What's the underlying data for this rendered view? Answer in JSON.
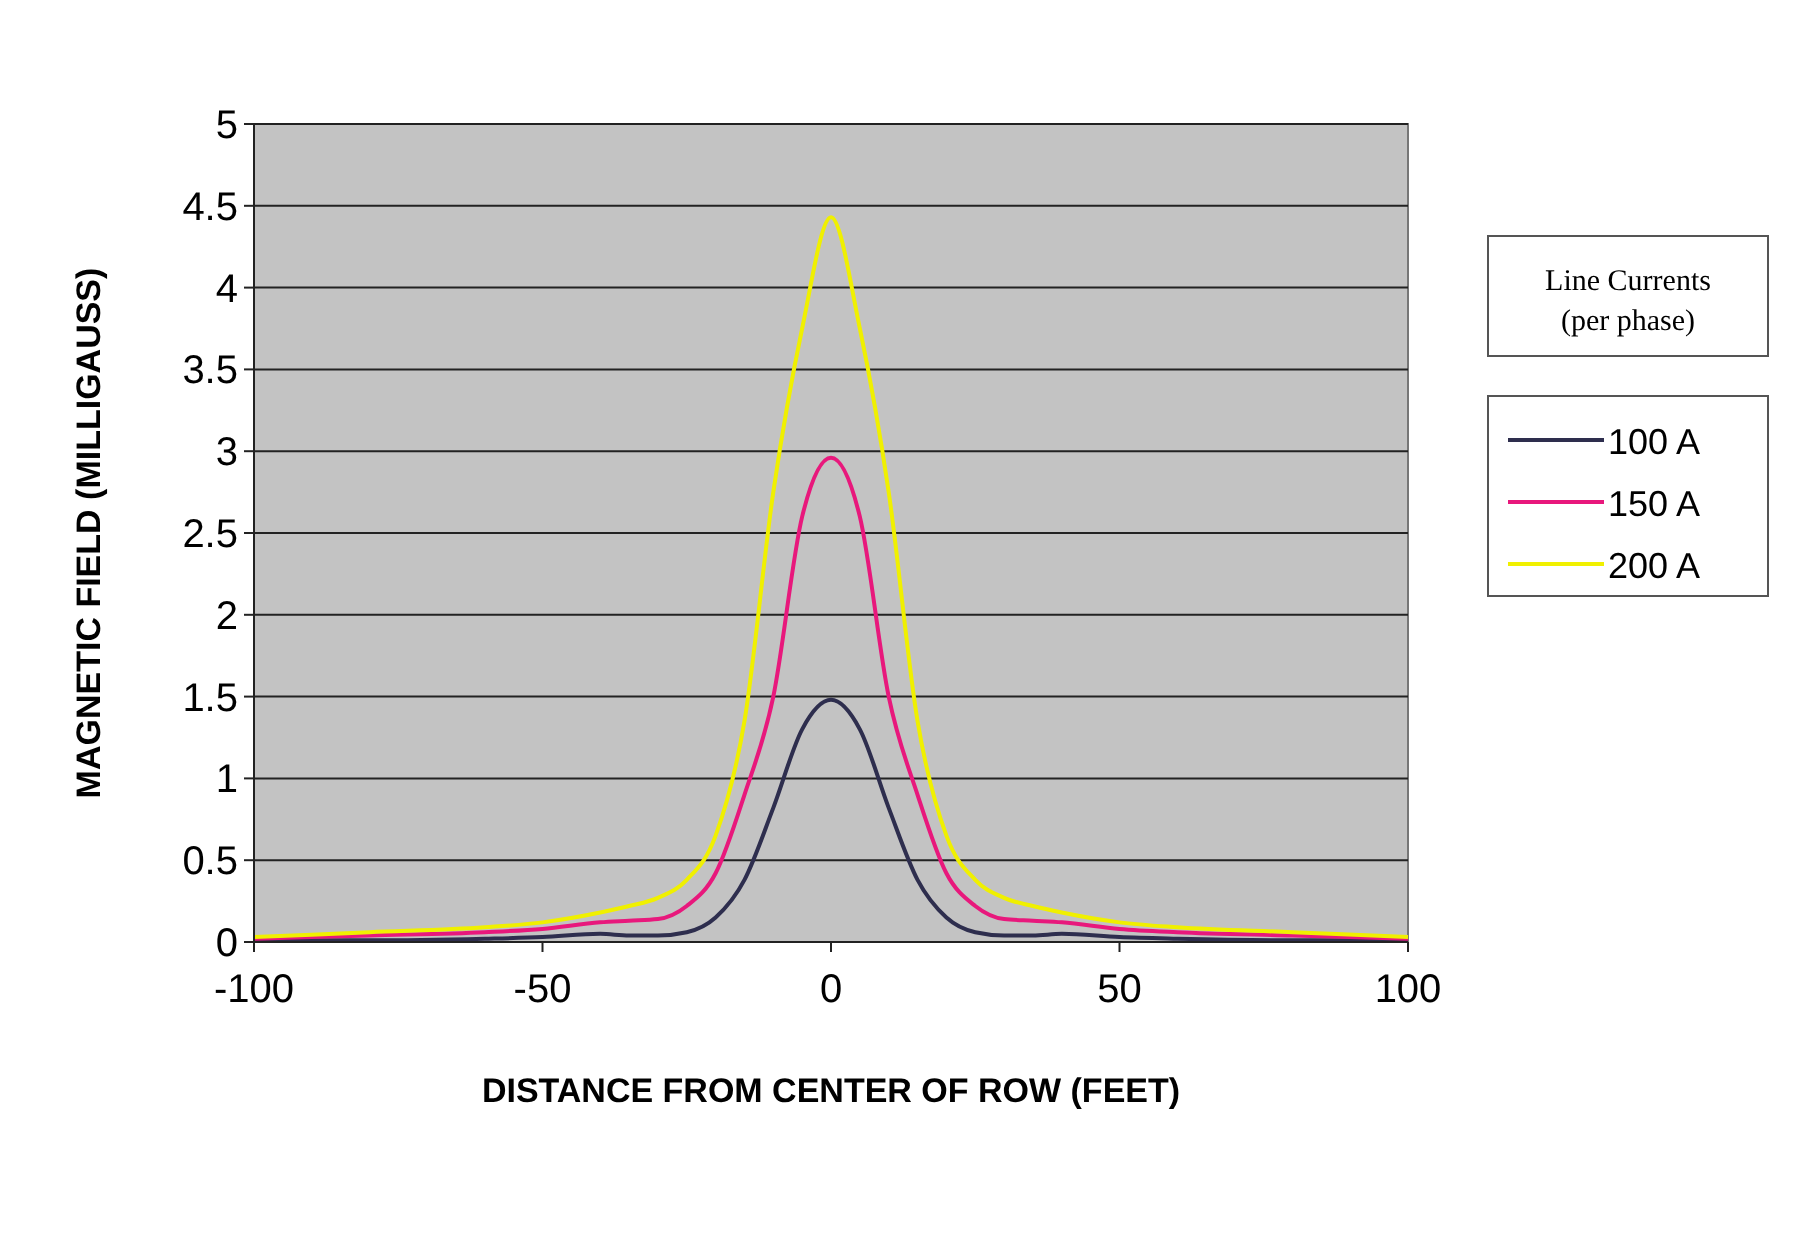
{
  "chart_data": {
    "type": "line",
    "xlabel": "DISTANCE FROM CENTER OF ROW (FEET)",
    "ylabel": "MAGNETIC FIELD (MILLIGAUSS)",
    "legend_title": "Line Currents (per phase)",
    "legend": "right",
    "grid": "y",
    "line_style": "solid",
    "x": [
      -100,
      -80,
      -60,
      -50,
      -40,
      -35,
      -30,
      -25,
      -20,
      -15,
      -10,
      -5,
      0,
      5,
      10,
      15,
      20,
      25,
      30,
      35,
      40,
      50,
      60,
      80,
      100
    ],
    "xlim": [
      -100,
      100
    ],
    "xticks": [
      -100,
      -50,
      0,
      50,
      100
    ],
    "ylim": [
      0,
      5
    ],
    "yticks": [
      0,
      0.5,
      1,
      1.5,
      2,
      2.5,
      3,
      3.5,
      4,
      4.5,
      5
    ],
    "series": [
      {
        "name": "100 A",
        "color": "#2e2e4e",
        "values": [
          0.01,
          0.01,
          0.02,
          0.03,
          0.05,
          0.04,
          0.04,
          0.06,
          0.15,
          0.38,
          0.82,
          1.3,
          1.48,
          1.3,
          0.82,
          0.38,
          0.15,
          0.06,
          0.04,
          0.04,
          0.05,
          0.03,
          0.02,
          0.01,
          0.01
        ]
      },
      {
        "name": "150 A",
        "color": "#e8187c",
        "values": [
          0.02,
          0.04,
          0.06,
          0.08,
          0.12,
          0.13,
          0.14,
          0.22,
          0.42,
          0.9,
          1.5,
          2.6,
          2.96,
          2.6,
          1.5,
          0.9,
          0.42,
          0.22,
          0.14,
          0.13,
          0.12,
          0.08,
          0.06,
          0.04,
          0.02
        ]
      },
      {
        "name": "200 A",
        "color": "#f0f000",
        "values": [
          0.03,
          0.06,
          0.09,
          0.12,
          0.18,
          0.22,
          0.27,
          0.38,
          0.65,
          1.35,
          2.75,
          3.75,
          4.43,
          3.75,
          2.75,
          1.35,
          0.65,
          0.38,
          0.27,
          0.22,
          0.18,
          0.12,
          0.09,
          0.06,
          0.03
        ]
      }
    ]
  }
}
